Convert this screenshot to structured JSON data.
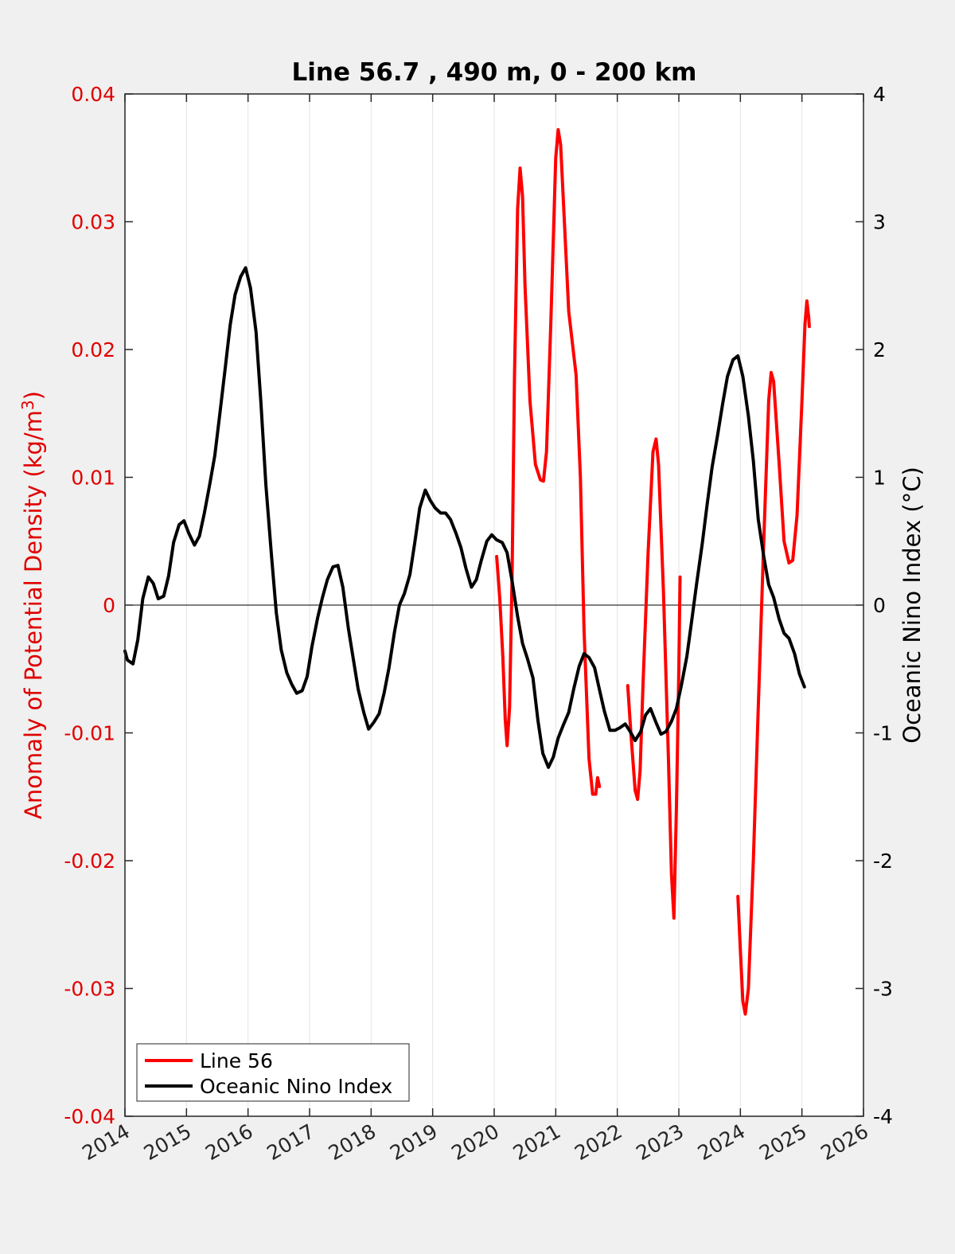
{
  "chart_data": {
    "type": "line",
    "title": "Line 56.7 , 490 m, 0 - 200 km",
    "ylabel_left": "Anomaly of Potential Density (kg/m",
    "ylabel_left_sup": "3",
    "ylabel_left_close": ")",
    "ylabel_right": "Oceanic Nino Index (°C)",
    "xlim": [
      2014,
      2026
    ],
    "ylim_left": [
      -0.04,
      0.04
    ],
    "ylim_right": [
      -4,
      4
    ],
    "x_ticks": [
      "2014",
      "2015",
      "2016",
      "2017",
      "2018",
      "2019",
      "2020",
      "2021",
      "2022",
      "2023",
      "2024",
      "2025",
      "2026"
    ],
    "left_ticks": [
      "0.04",
      "0.03",
      "0.02",
      "0.01",
      "0",
      "-0.01",
      "-0.02",
      "-0.03",
      "-0.04"
    ],
    "right_ticks": [
      "4",
      "3",
      "2",
      "1",
      "0",
      "-1",
      "-2",
      "-3",
      "-4"
    ],
    "grid": "vertical",
    "zero_line": true,
    "legend": "bottom-left",
    "series": [
      {
        "name": "Line 56",
        "axis": "left",
        "color": "#ff0000",
        "segments": [
          [
            [
              2020.04,
              0.0038
            ],
            [
              2020.09,
              0.0005
            ],
            [
              2020.14,
              -0.004
            ],
            [
              2020.18,
              -0.009
            ],
            [
              2020.21,
              -0.011
            ],
            [
              2020.25,
              -0.008
            ],
            [
              2020.29,
              0.002
            ],
            [
              2020.33,
              0.018
            ],
            [
              2020.38,
              0.031
            ],
            [
              2020.42,
              0.0342
            ],
            [
              2020.46,
              0.032
            ],
            [
              2020.5,
              0.025
            ],
            [
              2020.58,
              0.016
            ],
            [
              2020.67,
              0.011
            ],
            [
              2020.75,
              0.0098
            ],
            [
              2020.8,
              0.0097
            ],
            [
              2020.85,
              0.012
            ],
            [
              2020.92,
              0.022
            ],
            [
              2021.0,
              0.035
            ],
            [
              2021.04,
              0.0372
            ],
            [
              2021.08,
              0.036
            ],
            [
              2021.13,
              0.031
            ],
            [
              2021.21,
              0.023
            ],
            [
              2021.33,
              0.018
            ],
            [
              2021.4,
              0.01
            ],
            [
              2021.46,
              -0.002
            ],
            [
              2021.54,
              -0.012
            ],
            [
              2021.6,
              -0.0148
            ],
            [
              2021.65,
              -0.0148
            ],
            [
              2021.68,
              -0.0135
            ],
            [
              2021.71,
              -0.0142
            ]
          ],
          [
            [
              2022.17,
              -0.0063
            ],
            [
              2022.22,
              -0.01
            ],
            [
              2022.29,
              -0.0145
            ],
            [
              2022.33,
              -0.0152
            ],
            [
              2022.37,
              -0.013
            ],
            [
              2022.42,
              -0.006
            ],
            [
              2022.5,
              0.004
            ],
            [
              2022.58,
              0.012
            ],
            [
              2022.63,
              0.013
            ],
            [
              2022.67,
              0.011
            ],
            [
              2022.75,
              0.001
            ],
            [
              2022.83,
              -0.012
            ],
            [
              2022.88,
              -0.021
            ],
            [
              2022.92,
              -0.0245
            ],
            [
              2022.96,
              -0.016
            ],
            [
              2023.0,
              -0.005
            ],
            [
              2023.02,
              0.0022
            ]
          ],
          [
            [
              2023.96,
              -0.0228
            ],
            [
              2024.0,
              -0.027
            ],
            [
              2024.04,
              -0.031
            ],
            [
              2024.08,
              -0.032
            ],
            [
              2024.13,
              -0.03
            ],
            [
              2024.21,
              -0.02
            ],
            [
              2024.29,
              -0.008
            ],
            [
              2024.38,
              0.005
            ],
            [
              2024.46,
              0.016
            ],
            [
              2024.5,
              0.0182
            ],
            [
              2024.54,
              0.0175
            ],
            [
              2024.63,
              0.011
            ],
            [
              2024.71,
              0.005
            ],
            [
              2024.79,
              0.0033
            ],
            [
              2024.85,
              0.0035
            ],
            [
              2024.92,
              0.007
            ],
            [
              2025.0,
              0.016
            ],
            [
              2025.05,
              0.022
            ],
            [
              2025.08,
              0.0238
            ],
            [
              2025.11,
              0.0225
            ],
            [
              2025.12,
              0.0218
            ]
          ]
        ]
      },
      {
        "name": "Oceanic Nino Index",
        "axis": "right",
        "color": "#000000",
        "points": [
          [
            2014.0,
            -0.36
          ],
          [
            2014.04,
            -0.43
          ],
          [
            2014.13,
            -0.46
          ],
          [
            2014.21,
            -0.27
          ],
          [
            2014.29,
            0.05
          ],
          [
            2014.38,
            0.22
          ],
          [
            2014.46,
            0.17
          ],
          [
            2014.54,
            0.05
          ],
          [
            2014.63,
            0.07
          ],
          [
            2014.71,
            0.23
          ],
          [
            2014.79,
            0.49
          ],
          [
            2014.88,
            0.63
          ],
          [
            2014.96,
            0.66
          ],
          [
            2015.04,
            0.56
          ],
          [
            2015.13,
            0.47
          ],
          [
            2015.21,
            0.54
          ],
          [
            2015.29,
            0.72
          ],
          [
            2015.38,
            0.95
          ],
          [
            2015.46,
            1.17
          ],
          [
            2015.54,
            1.49
          ],
          [
            2015.63,
            1.86
          ],
          [
            2015.71,
            2.19
          ],
          [
            2015.79,
            2.43
          ],
          [
            2015.88,
            2.57
          ],
          [
            2015.96,
            2.64
          ],
          [
            2016.04,
            2.48
          ],
          [
            2016.13,
            2.14
          ],
          [
            2016.21,
            1.58
          ],
          [
            2016.29,
            0.94
          ],
          [
            2016.38,
            0.39
          ],
          [
            2016.46,
            -0.06
          ],
          [
            2016.54,
            -0.35
          ],
          [
            2016.63,
            -0.53
          ],
          [
            2016.71,
            -0.62
          ],
          [
            2016.79,
            -0.69
          ],
          [
            2016.88,
            -0.67
          ],
          [
            2016.96,
            -0.56
          ],
          [
            2017.04,
            -0.32
          ],
          [
            2017.13,
            -0.1
          ],
          [
            2017.21,
            0.06
          ],
          [
            2017.29,
            0.2
          ],
          [
            2017.38,
            0.3
          ],
          [
            2017.46,
            0.31
          ],
          [
            2017.54,
            0.14
          ],
          [
            2017.63,
            -0.18
          ],
          [
            2017.71,
            -0.42
          ],
          [
            2017.79,
            -0.66
          ],
          [
            2017.88,
            -0.84
          ],
          [
            2017.96,
            -0.97
          ],
          [
            2018.04,
            -0.92
          ],
          [
            2018.13,
            -0.85
          ],
          [
            2018.21,
            -0.69
          ],
          [
            2018.29,
            -0.49
          ],
          [
            2018.38,
            -0.21
          ],
          [
            2018.46,
            0.0
          ],
          [
            2018.54,
            0.09
          ],
          [
            2018.63,
            0.24
          ],
          [
            2018.71,
            0.49
          ],
          [
            2018.79,
            0.76
          ],
          [
            2018.88,
            0.9
          ],
          [
            2018.96,
            0.82
          ],
          [
            2019.04,
            0.76
          ],
          [
            2019.13,
            0.72
          ],
          [
            2019.21,
            0.72
          ],
          [
            2019.29,
            0.67
          ],
          [
            2019.38,
            0.56
          ],
          [
            2019.46,
            0.45
          ],
          [
            2019.54,
            0.29
          ],
          [
            2019.63,
            0.14
          ],
          [
            2019.71,
            0.2
          ],
          [
            2019.79,
            0.35
          ],
          [
            2019.88,
            0.5
          ],
          [
            2019.96,
            0.55
          ],
          [
            2020.04,
            0.51
          ],
          [
            2020.13,
            0.49
          ],
          [
            2020.21,
            0.41
          ],
          [
            2020.29,
            0.19
          ],
          [
            2020.38,
            -0.09
          ],
          [
            2020.46,
            -0.3
          ],
          [
            2020.54,
            -0.42
          ],
          [
            2020.63,
            -0.57
          ],
          [
            2020.71,
            -0.9
          ],
          [
            2020.79,
            -1.16
          ],
          [
            2020.88,
            -1.27
          ],
          [
            2020.96,
            -1.19
          ],
          [
            2021.04,
            -1.04
          ],
          [
            2021.13,
            -0.93
          ],
          [
            2021.21,
            -0.84
          ],
          [
            2021.29,
            -0.66
          ],
          [
            2021.38,
            -0.48
          ],
          [
            2021.46,
            -0.38
          ],
          [
            2021.54,
            -0.41
          ],
          [
            2021.63,
            -0.49
          ],
          [
            2021.71,
            -0.66
          ],
          [
            2021.79,
            -0.83
          ],
          [
            2021.88,
            -0.98
          ],
          [
            2021.96,
            -0.98
          ],
          [
            2022.04,
            -0.96
          ],
          [
            2022.13,
            -0.93
          ],
          [
            2022.21,
            -0.99
          ],
          [
            2022.29,
            -1.06
          ],
          [
            2022.38,
            -0.99
          ],
          [
            2022.46,
            -0.86
          ],
          [
            2022.54,
            -0.81
          ],
          [
            2022.63,
            -0.92
          ],
          [
            2022.71,
            -1.01
          ],
          [
            2022.79,
            -0.99
          ],
          [
            2022.88,
            -0.91
          ],
          [
            2022.96,
            -0.81
          ],
          [
            2023.04,
            -0.63
          ],
          [
            2023.13,
            -0.4
          ],
          [
            2023.21,
            -0.12
          ],
          [
            2023.29,
            0.17
          ],
          [
            2023.38,
            0.48
          ],
          [
            2023.46,
            0.79
          ],
          [
            2023.54,
            1.08
          ],
          [
            2023.63,
            1.33
          ],
          [
            2023.71,
            1.57
          ],
          [
            2023.79,
            1.79
          ],
          [
            2023.88,
            1.92
          ],
          [
            2023.96,
            1.95
          ],
          [
            2024.04,
            1.79
          ],
          [
            2024.13,
            1.48
          ],
          [
            2024.21,
            1.13
          ],
          [
            2024.29,
            0.67
          ],
          [
            2024.38,
            0.38
          ],
          [
            2024.46,
            0.16
          ],
          [
            2024.54,
            0.06
          ],
          [
            2024.63,
            -0.11
          ],
          [
            2024.71,
            -0.22
          ],
          [
            2024.79,
            -0.26
          ],
          [
            2024.88,
            -0.38
          ],
          [
            2024.96,
            -0.54
          ],
          [
            2025.04,
            -0.64
          ]
        ]
      }
    ]
  }
}
